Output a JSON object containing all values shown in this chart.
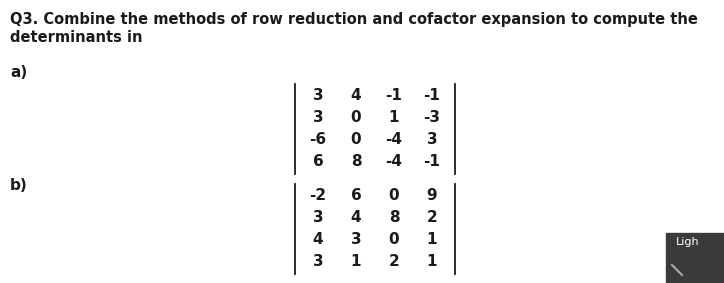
{
  "title_line1": "Q3. Combine the methods of row reduction and cofactor expansion to compute the",
  "title_line2": "determinants in",
  "label_a": "a)",
  "label_b": "b)",
  "matrix_a": [
    [
      "3",
      "4",
      "-1",
      "-1"
    ],
    [
      "3",
      "0",
      "1",
      "-3"
    ],
    [
      "-6",
      "0",
      "-4",
      "3"
    ],
    [
      "6",
      "8",
      "-4",
      "-1"
    ]
  ],
  "matrix_b": [
    [
      "-2",
      "6",
      "0",
      "9"
    ],
    [
      "3",
      "4",
      "8",
      "2"
    ],
    [
      "4",
      "3",
      "0",
      "1"
    ],
    [
      "3",
      "1",
      "2",
      "1"
    ]
  ],
  "bg_color": "#ffffff",
  "text_color": "#1a1a1a",
  "title_fontsize": 10.5,
  "label_fontsize": 11,
  "matrix_fontsize": 11,
  "font_weight": "bold",
  "dark_box_color": "#3a3a3a",
  "ligh_text": "Ligh",
  "ligh_fontsize": 8
}
